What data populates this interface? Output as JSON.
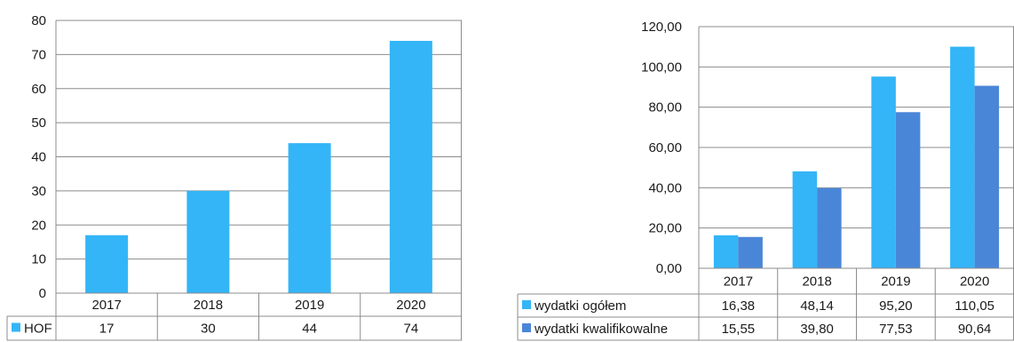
{
  "chart_data": [
    {
      "type": "bar",
      "title": "",
      "categories": [
        "2017",
        "2018",
        "2019",
        "2020"
      ],
      "series": [
        {
          "name": "HOF",
          "values": [
            17,
            30,
            44,
            74
          ],
          "labels": [
            "17",
            "30",
            "44",
            "74"
          ],
          "color": "#33B5F7"
        }
      ],
      "yticks": [
        "0",
        "10",
        "20",
        "30",
        "40",
        "50",
        "60",
        "70",
        "80"
      ],
      "ylim": [
        0,
        80
      ],
      "grid": true,
      "legend": "data table"
    },
    {
      "type": "bar",
      "title": "",
      "categories": [
        "2017",
        "2018",
        "2019",
        "2020"
      ],
      "series": [
        {
          "name": "wydatki ogółem",
          "values": [
            16.38,
            48.14,
            95.2,
            110.05
          ],
          "labels": [
            "16,38",
            "48,14",
            "95,20",
            "110,05"
          ],
          "color": "#33B5F7"
        },
        {
          "name": "wydatki kwalifikowalne",
          "values": [
            15.55,
            39.8,
            77.53,
            90.64
          ],
          "labels": [
            "15,55",
            "39,80",
            "77,53",
            "90,64"
          ],
          "color": "#4A86D8"
        }
      ],
      "yticks": [
        "0,00",
        "20,00",
        "40,00",
        "60,00",
        "80,00",
        "100,00",
        "120,00"
      ],
      "ylim": [
        0,
        120
      ],
      "grid": true,
      "legend": "data table"
    }
  ]
}
